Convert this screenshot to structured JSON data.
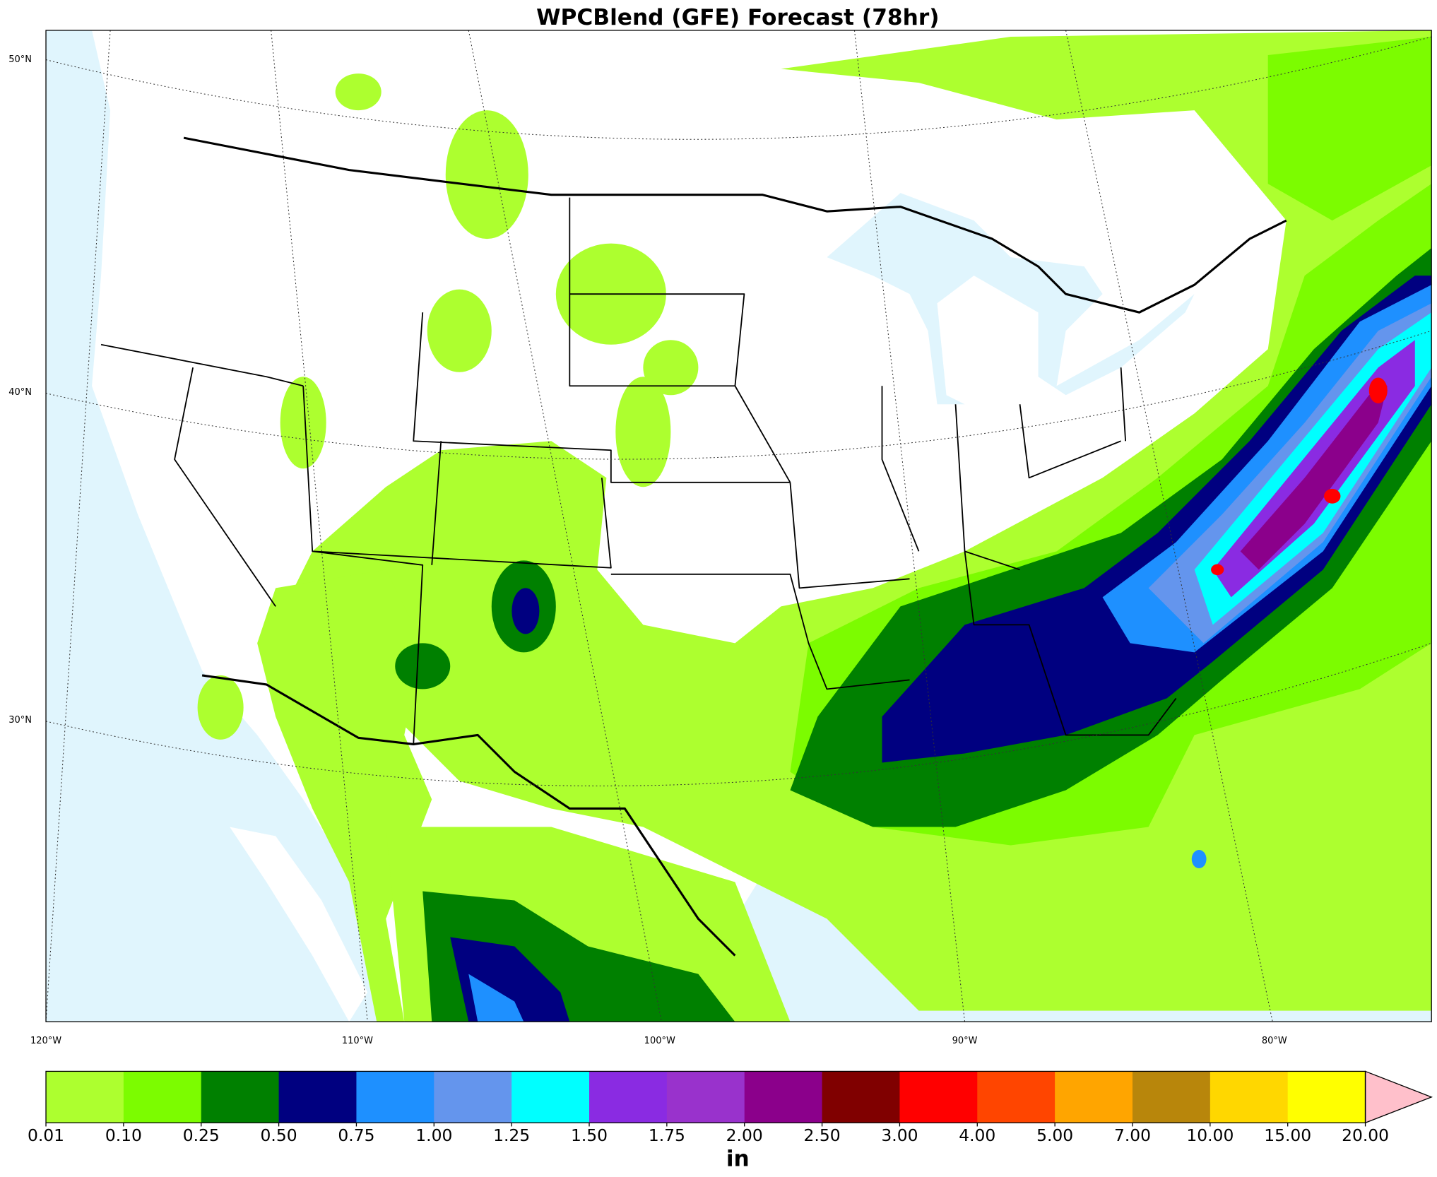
{
  "title": "WPCBlend (GFE) Forecast (78hr)",
  "latitude_labels": [
    "50°N",
    "40°N",
    "30°N"
  ],
  "longitude_labels": [
    "120°W",
    "110°W",
    "100°W",
    "90°W",
    "80°W"
  ],
  "colorbar": {
    "labels": [
      "0.01",
      "0.10",
      "0.25",
      "0.50",
      "0.75",
      "1.00",
      "1.25",
      "1.50",
      "1.75",
      "2.00",
      "2.50",
      "3.00",
      "4.00",
      "5.00",
      "7.00",
      "10.00",
      "15.00",
      "20.00"
    ],
    "colors": [
      "#adff2f",
      "#7cfc00",
      "#008000",
      "#000080",
      "#1e90ff",
      "#6495ed",
      "#00ffff",
      "#8a2be2",
      "#9932cc",
      "#8b008b",
      "#800000",
      "#ff0000",
      "#ff4500",
      "#ffa500",
      "#b8860b",
      "#ffd700",
      "#ffff00"
    ],
    "extend_color": "#ffc0cb",
    "unit": "in"
  }
}
